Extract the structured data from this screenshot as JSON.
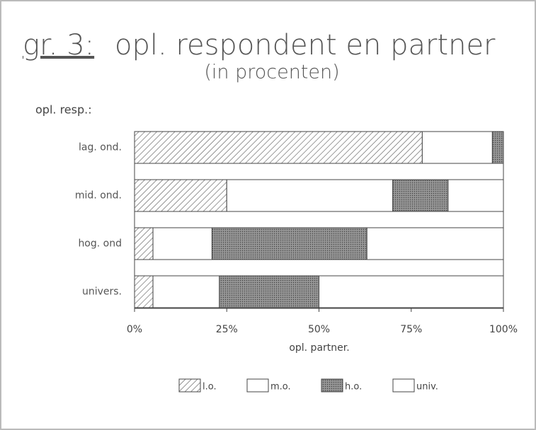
{
  "chart_data": {
    "type": "stacked_barh",
    "figure_label": "gr. 3:",
    "title": "opl. respondent en partner",
    "subtitle": "(in procenten)",
    "y_label": "opl. resp.:",
    "x_label": "opl. partner.",
    "categories": [
      "lag. ond.",
      "mid. ond.",
      "hog. ond",
      "univers."
    ],
    "series": [
      {
        "name": "l.o.",
        "color": "#ffffff",
        "pattern": "hatch",
        "values": [
          78,
          25,
          5,
          5
        ]
      },
      {
        "name": "m.o.",
        "color": "#ffffff",
        "pattern": null,
        "values": [
          19,
          45,
          16,
          18
        ]
      },
      {
        "name": "h.o.",
        "color": "#ffffff",
        "pattern": "dots",
        "values": [
          3,
          15,
          42,
          27
        ]
      },
      {
        "name": "univ.",
        "color": "#ffffff",
        "pattern": null,
        "values": [
          0,
          15,
          37,
          50
        ]
      }
    ],
    "xlim": [
      0,
      100
    ],
    "xticks": [
      {
        "value": 0,
        "label": "0%"
      },
      {
        "value": 25,
        "label": "25%"
      },
      {
        "value": 50,
        "label": "50%"
      },
      {
        "value": 75,
        "label": "75%"
      },
      {
        "value": 100,
        "label": "100%"
      }
    ]
  }
}
